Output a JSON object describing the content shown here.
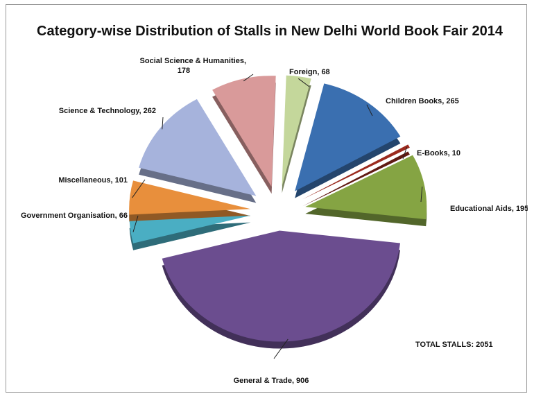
{
  "chart_data": {
    "type": "pie",
    "title": "Category-wise Distribution of Stalls in New Delhi World Book Fair 2014",
    "annotation": "TOTAL STALLS: 2051",
    "slices": [
      {
        "label": "Foreign",
        "value": 68,
        "value_text": "68",
        "color": "#c4d79b"
      },
      {
        "label": "Children Books",
        "value": 265,
        "value_text": "265",
        "color": "#3a6fb0"
      },
      {
        "label": "E-Books",
        "value": 10,
        "value_text": "10",
        "color": "#9b2a1e"
      },
      {
        "label": "Educational Aids",
        "value": 195,
        "value_text": "195",
        "color": "#85a443"
      },
      {
        "label": "General & Trade",
        "value": 906,
        "value_text": "906",
        "color": "#6b4d8f"
      },
      {
        "label": "Government Organisation",
        "value": 66,
        "value_text": "66",
        "color": "#4aaec3"
      },
      {
        "label": "Miscellaneous",
        "value": 101,
        "value_text": "101",
        "color": "#e88f3c"
      },
      {
        "label": "Science & Technology",
        "value": 262,
        "value_text": "262",
        "color": "#a6b3dc"
      },
      {
        "label": "Social Science & Humanities",
        "value": 178,
        "value_text": "178",
        "color": "#d99a9a"
      }
    ]
  }
}
